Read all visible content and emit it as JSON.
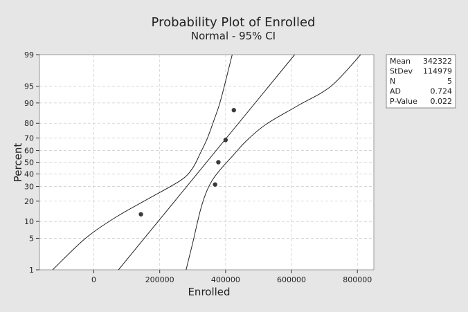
{
  "chart_data": {
    "type": "scatter",
    "title": "Probability Plot of Enrolled",
    "subtitle": "Normal - 95% CI",
    "xlabel": "Enrolled",
    "ylabel": "Percent",
    "xlim": [
      -165000,
      850000
    ],
    "x_ticks": [
      0,
      200000,
      400000,
      600000,
      800000
    ],
    "x_tick_labels": [
      "0",
      "200000",
      "400000",
      "600000",
      "800000"
    ],
    "y_scale": "normal-probability",
    "y_ticks": [
      1,
      5,
      10,
      20,
      30,
      40,
      50,
      60,
      70,
      80,
      90,
      95,
      99
    ],
    "y_tick_labels": [
      "1",
      "5",
      "10",
      "20",
      "30",
      "40",
      "50",
      "60",
      "70",
      "80",
      "90",
      "95",
      "99"
    ],
    "ylim": [
      1,
      99
    ],
    "grid": true,
    "points": [
      {
        "x": 143000,
        "y": 13
      },
      {
        "x": 368000,
        "y": 31.5
      },
      {
        "x": 378000,
        "y": 50
      },
      {
        "x": 400000,
        "y": 68.5
      },
      {
        "x": 425000,
        "y": 87
      }
    ],
    "fit_line": {
      "mean": 342322,
      "stdev": 114979
    },
    "ci_lower": [
      {
        "x": 280000,
        "y": 1
      },
      {
        "x": 300000,
        "y": 4
      },
      {
        "x": 322000,
        "y": 14
      },
      {
        "x": 340000,
        "y": 25
      },
      {
        "x": 360000,
        "y": 35
      },
      {
        "x": 385000,
        "y": 44
      },
      {
        "x": 420000,
        "y": 55
      },
      {
        "x": 460000,
        "y": 67
      },
      {
        "x": 520000,
        "y": 79
      },
      {
        "x": 620000,
        "y": 89
      },
      {
        "x": 720000,
        "y": 95
      },
      {
        "x": 810000,
        "y": 99
      }
    ],
    "ci_upper": [
      {
        "x": -125000,
        "y": 1
      },
      {
        "x": -25000,
        "y": 5
      },
      {
        "x": 70000,
        "y": 12
      },
      {
        "x": 170000,
        "y": 22
      },
      {
        "x": 265000,
        "y": 35
      },
      {
        "x": 300000,
        "y": 45
      },
      {
        "x": 322000,
        "y": 57
      },
      {
        "x": 345000,
        "y": 70
      },
      {
        "x": 365000,
        "y": 82
      },
      {
        "x": 385000,
        "y": 91
      },
      {
        "x": 420000,
        "y": 99
      }
    ],
    "legend_position": "top-right",
    "stats": [
      {
        "label": "Mean",
        "value": "342322"
      },
      {
        "label": "StDev",
        "value": "114979"
      },
      {
        "label": "N",
        "value": "5"
      },
      {
        "label": "AD",
        "value": "0.724"
      },
      {
        "label": "P-Value",
        "value": "0.022"
      }
    ],
    "colors": {
      "background": "#e6e6e6",
      "plot_area": "#ffffff",
      "line": "#222222",
      "point": "#3a3a3a",
      "grid": "#cfcfcf"
    }
  }
}
